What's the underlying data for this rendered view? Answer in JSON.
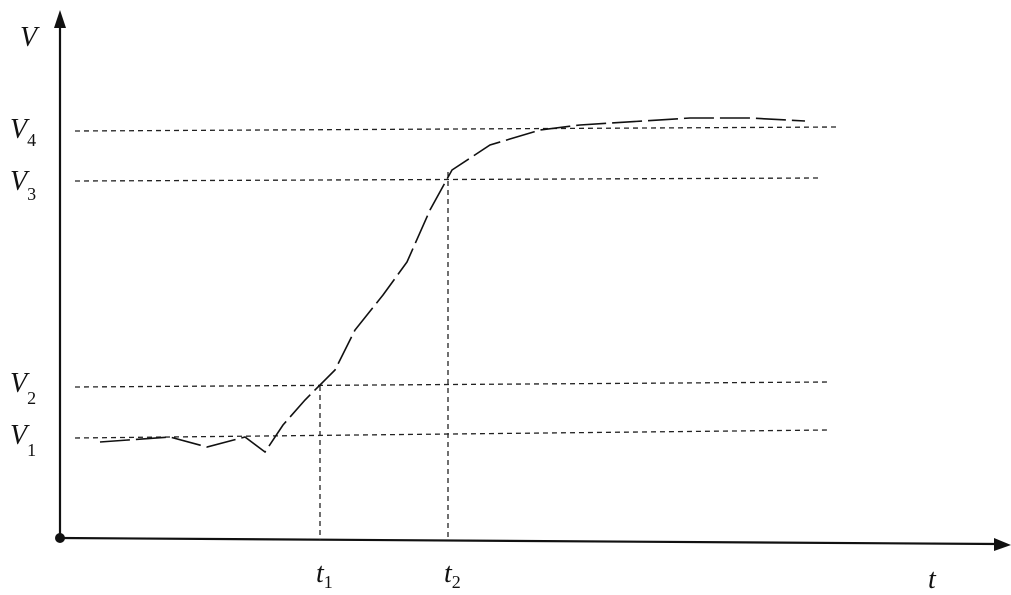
{
  "axes": {
    "y_label": "V",
    "x_label": "t"
  },
  "levels": [
    {
      "letter": "V",
      "subscript": "4"
    },
    {
      "letter": "V",
      "subscript": "3"
    },
    {
      "letter": "V",
      "subscript": "2"
    },
    {
      "letter": "V",
      "subscript": "1"
    }
  ],
  "times": [
    {
      "letter": "t",
      "subscript": "1"
    },
    {
      "letter": "t",
      "subscript": "2"
    }
  ]
}
